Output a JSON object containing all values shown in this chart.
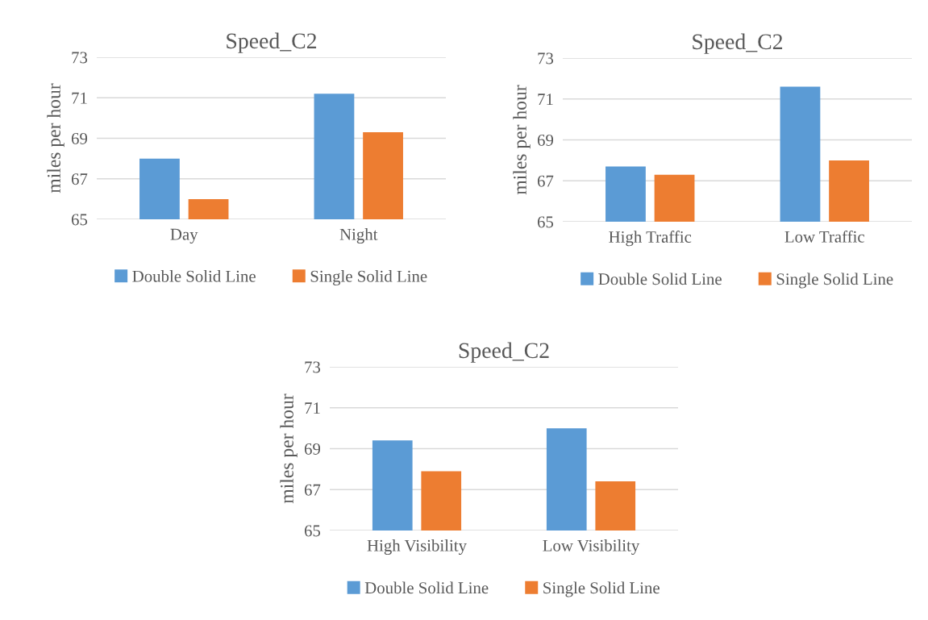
{
  "chart_data": [
    {
      "type": "bar",
      "title": "Speed_C2",
      "ylabel": "miles per hour",
      "categories": [
        "Day",
        "Night"
      ],
      "series": [
        {
          "name": "Double Solid Line",
          "color": "#5b9bd5",
          "values": [
            68.0,
            71.2
          ]
        },
        {
          "name": "Single Solid Line",
          "color": "#ed7d31",
          "values": [
            66.0,
            69.3
          ]
        }
      ],
      "ylim": [
        65,
        73
      ],
      "yticks": [
        65,
        67,
        69,
        71,
        73
      ],
      "grid": "y",
      "legend": "bottom"
    },
    {
      "type": "bar",
      "title": "Speed_C2",
      "ylabel": "miles per hour",
      "categories": [
        "High Traffic",
        "Low Traffic"
      ],
      "series": [
        {
          "name": "Double Solid Line",
          "color": "#5b9bd5",
          "values": [
            67.7,
            71.6
          ]
        },
        {
          "name": "Single Solid Line",
          "color": "#ed7d31",
          "values": [
            67.3,
            68.0
          ]
        }
      ],
      "ylim": [
        65,
        73
      ],
      "yticks": [
        65,
        67,
        69,
        71,
        73
      ],
      "grid": "y",
      "legend": "bottom"
    },
    {
      "type": "bar",
      "title": "Speed_C2",
      "ylabel": "miles per hour",
      "categories": [
        "High Visibility",
        "Low Visibility"
      ],
      "series": [
        {
          "name": "Double Solid Line",
          "color": "#5b9bd5",
          "values": [
            69.4,
            70.0
          ]
        },
        {
          "name": "Single Solid Line",
          "color": "#ed7d31",
          "values": [
            67.9,
            67.4
          ]
        }
      ],
      "ylim": [
        65,
        73
      ],
      "yticks": [
        65,
        67,
        69,
        71,
        73
      ],
      "grid": "y",
      "legend": "bottom"
    }
  ]
}
